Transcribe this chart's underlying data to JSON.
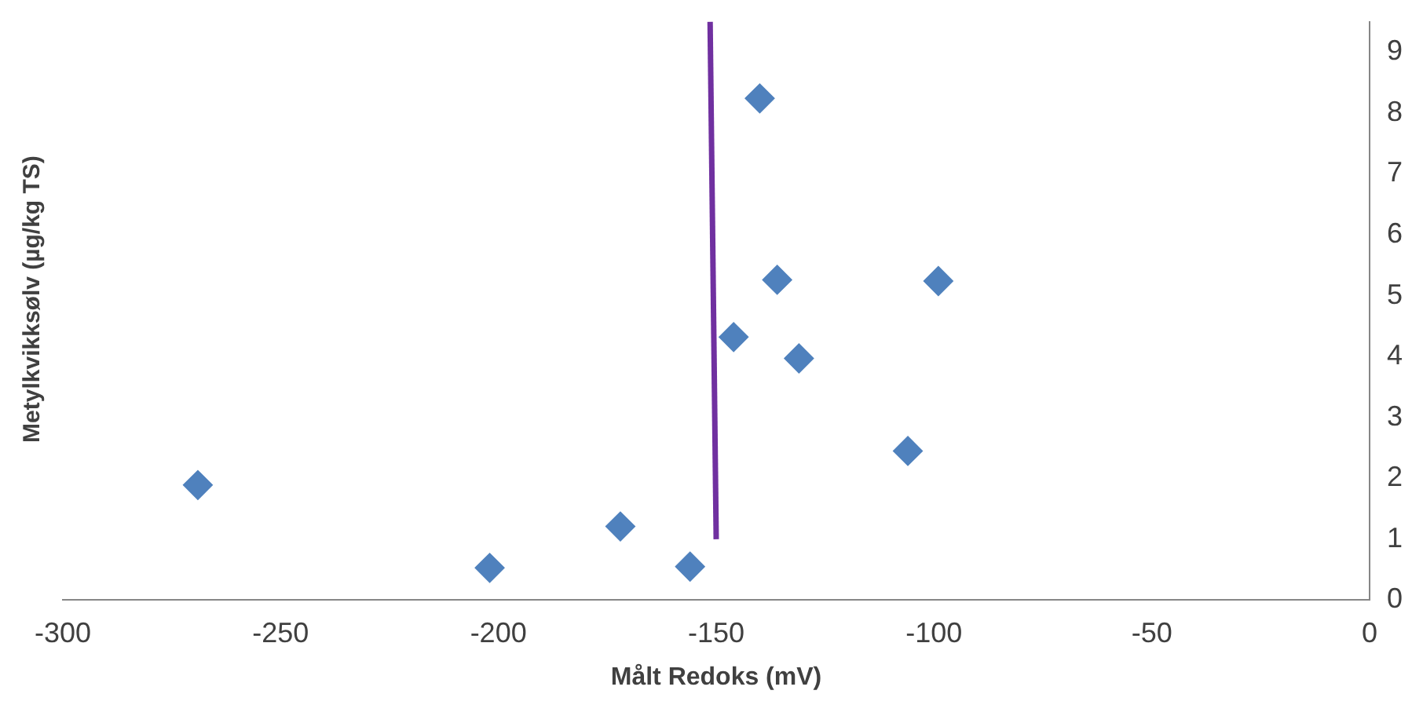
{
  "chart_data": {
    "type": "scatter",
    "xlabel": "Målt Redoks (mV)",
    "ylabel": "Metylkvikksølv (µg/kg TS)",
    "xlim": [
      -300,
      0
    ],
    "xticks": [
      -300,
      -250,
      -200,
      -150,
      -100,
      -50,
      0
    ],
    "ylim": [
      0,
      9.5
    ],
    "yticks": [
      0,
      1,
      2,
      3,
      4,
      5,
      6,
      7,
      8,
      9
    ],
    "grid": false,
    "series": [
      {
        "marker": "diamond",
        "color": "#4f81bd",
        "x": [
          -269,
          -202,
          -172,
          -156,
          -146,
          -140,
          -136,
          -131,
          -106,
          -99
        ],
        "values": [
          1.89,
          0.53,
          1.21,
          0.55,
          4.32,
          8.24,
          5.26,
          3.97,
          2.45,
          5.24
        ]
      },
      {
        "type": "line",
        "marker": "none",
        "color": "#7030a0",
        "x": [
          -150,
          -151.4
        ],
        "values": [
          1.0,
          9.5
        ]
      }
    ]
  }
}
